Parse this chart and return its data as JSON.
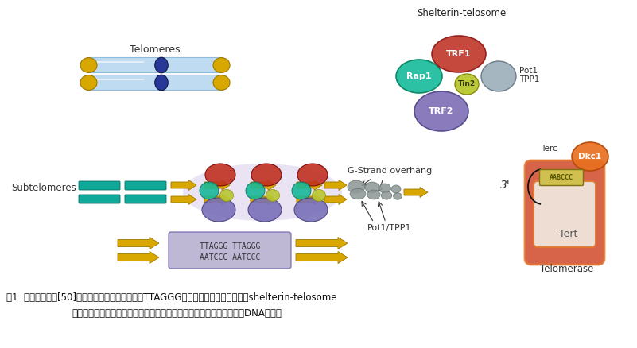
{
  "caption_line1": "图1. 端粒结构介绍[50]（哺乳动物端粒由一系列的TTAGGG重复序列组成，这些序列与shelterin-telosome",
  "caption_line2": "蛋白复合体相结合；临近端粒是亚端粒区域，该区域也含有大量的重复DNA序列）",
  "bg_color": "#ffffff",
  "telomere_label": "Telomeres",
  "subtelomere_label": "Subtelomeres",
  "shelterin_label": "Shelterin-telosome",
  "g_strand_label": "G-Strand overhang",
  "pot1tpp1_label": "Pot1/TPP1",
  "terc_label": "Terc",
  "dkc1_label": "Dkc1",
  "tert_label": "Tert",
  "telomerase_label": "Telomerase",
  "trf1_label": "TRF1",
  "trf2_label": "TRF2",
  "rap1_label": "Rap1",
  "tin2_label": "Tin2",
  "pot1_label": "Pot1",
  "tpp1_label": "TPP1",
  "three_prime": "3'",
  "aatccc_text": "AABCCC",
  "seq_top": "TTAGGG TTAGGG",
  "seq_bot": "AATCCC AATCCC",
  "colors": {
    "trf1": "#c0392b",
    "trf2": "#8070b8",
    "rap1": "#1abc9c",
    "tin2": "#b8c830",
    "pot1tpp1": "#9aacb8",
    "telomere_blue": "#b8d8f0",
    "telomere_dark": "#283898",
    "telomere_yellow": "#d8a800",
    "teal_bar": "#10a898",
    "gold_arrow": "#d8a800",
    "red_blob": "#c03020",
    "blue_blob": "#7870b8",
    "green_blob": "#18b898",
    "gray_blob": "#909898",
    "purple_glow": "#c0b0e0",
    "dkc1": "#e87020",
    "seq_bg": "#a8a0c8",
    "aatccc_bg": "#d0c050",
    "tert_body": "#f0e8e0",
    "terc_body": "#d04828",
    "orange_outline": "#e07830"
  }
}
